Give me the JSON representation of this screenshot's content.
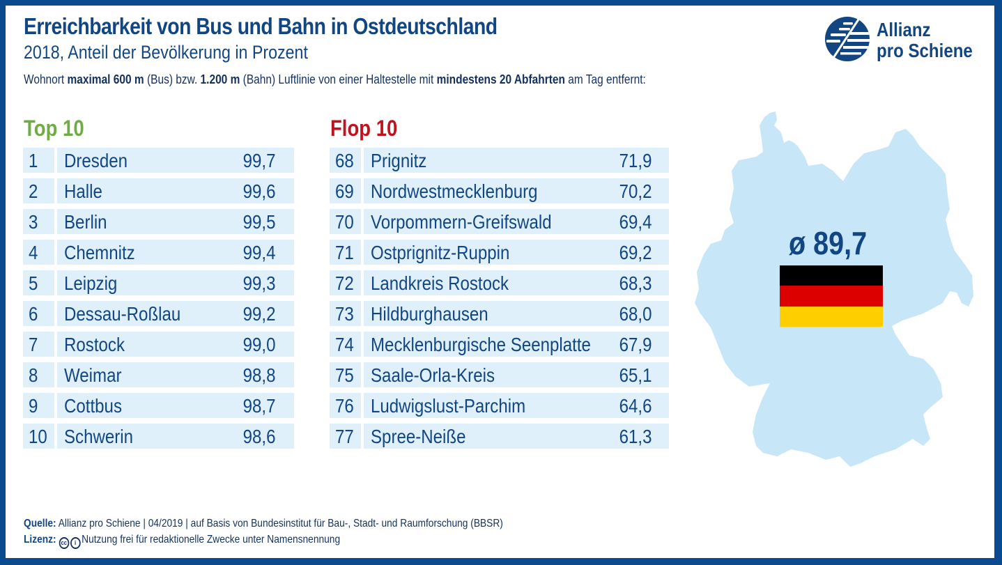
{
  "header": {
    "title": "Erreichbarkeit von Bus und Bahn in Ostdeutschland",
    "subtitle": "2018, Anteil der Bevölkerung in Prozent",
    "note": {
      "p1": "Wohnort ",
      "b1": "maximal 600 m",
      "p2": " (Bus) bzw. ",
      "b2": "1.200 m",
      "p3": " (Bahn) Luftlinie von einer Haltestelle mit ",
      "b3": "mindestens 20 Abfahrten",
      "p4": " am Tag entfernt:"
    }
  },
  "logo": {
    "line1": "Allianz",
    "line2": "pro Schiene"
  },
  "colors": {
    "primary": "#124683",
    "frame": "#0b4a8f",
    "row_bg": "#dff0fb",
    "top_green": "#6fac46",
    "flop_red": "#c1121f",
    "map_fill": "#c7e6f8",
    "flag_black": "#000000",
    "flag_red": "#dd0000",
    "flag_gold": "#ffce00"
  },
  "chart_data": {
    "type": "table",
    "title": "Erreichbarkeit von Bus und Bahn in Ostdeutschland",
    "subtitle": "2018, Anteil der Bevölkerung in Prozent",
    "average": {
      "label": "ø 89,7",
      "value": 89.7
    },
    "top10": {
      "heading": "Top 10",
      "rows": [
        {
          "rank": "1",
          "name": "Dresden",
          "value": "99,7"
        },
        {
          "rank": "2",
          "name": "Halle",
          "value": "99,6"
        },
        {
          "rank": "3",
          "name": "Berlin",
          "value": "99,5"
        },
        {
          "rank": "4",
          "name": "Chemnitz",
          "value": "99,4"
        },
        {
          "rank": "5",
          "name": "Leipzig",
          "value": "99,3"
        },
        {
          "rank": "6",
          "name": "Dessau-Roßlau",
          "value": "99,2"
        },
        {
          "rank": "7",
          "name": "Rostock",
          "value": "99,0"
        },
        {
          "rank": "8",
          "name": "Weimar",
          "value": "98,8"
        },
        {
          "rank": "9",
          "name": "Cottbus",
          "value": "98,7"
        },
        {
          "rank": "10",
          "name": "Schwerin",
          "value": "98,6"
        }
      ]
    },
    "flop10": {
      "heading": "Flop 10",
      "rows": [
        {
          "rank": "68",
          "name": "Prignitz",
          "value": "71,9"
        },
        {
          "rank": "69",
          "name": "Nordwestmecklenburg",
          "value": "70,2"
        },
        {
          "rank": "70",
          "name": "Vorpommern-Greifswald",
          "value": "69,4"
        },
        {
          "rank": "71",
          "name": "Ostprignitz-Ruppin",
          "value": "69,2"
        },
        {
          "rank": "72",
          "name": "Landkreis Rostock",
          "value": "68,3"
        },
        {
          "rank": "73",
          "name": "Hildburghausen",
          "value": "68,0"
        },
        {
          "rank": "74",
          "name": "Mecklenburgische Seenplatte",
          "value": "67,9"
        },
        {
          "rank": "75",
          "name": "Saale-Orla-Kreis",
          "value": "65,1"
        },
        {
          "rank": "76",
          "name": "Ludwigslust-Parchim",
          "value": "64,6"
        },
        {
          "rank": "77",
          "name": "Spree-Neiße",
          "value": "61,3"
        }
      ]
    }
  },
  "footer": {
    "source_label": "Quelle:",
    "source_text": "Allianz pro Schiene | 04/2019 | auf Basis von Bundesinstitut für Bau-, Stadt- und Raumforschung (BBSR)",
    "license_label": "Lizenz:",
    "license_icons": [
      "cc-icon",
      "by-attribution-icon"
    ],
    "license_text": "Nutzung frei für redaktionelle Zwecke unter Namensnennung"
  }
}
